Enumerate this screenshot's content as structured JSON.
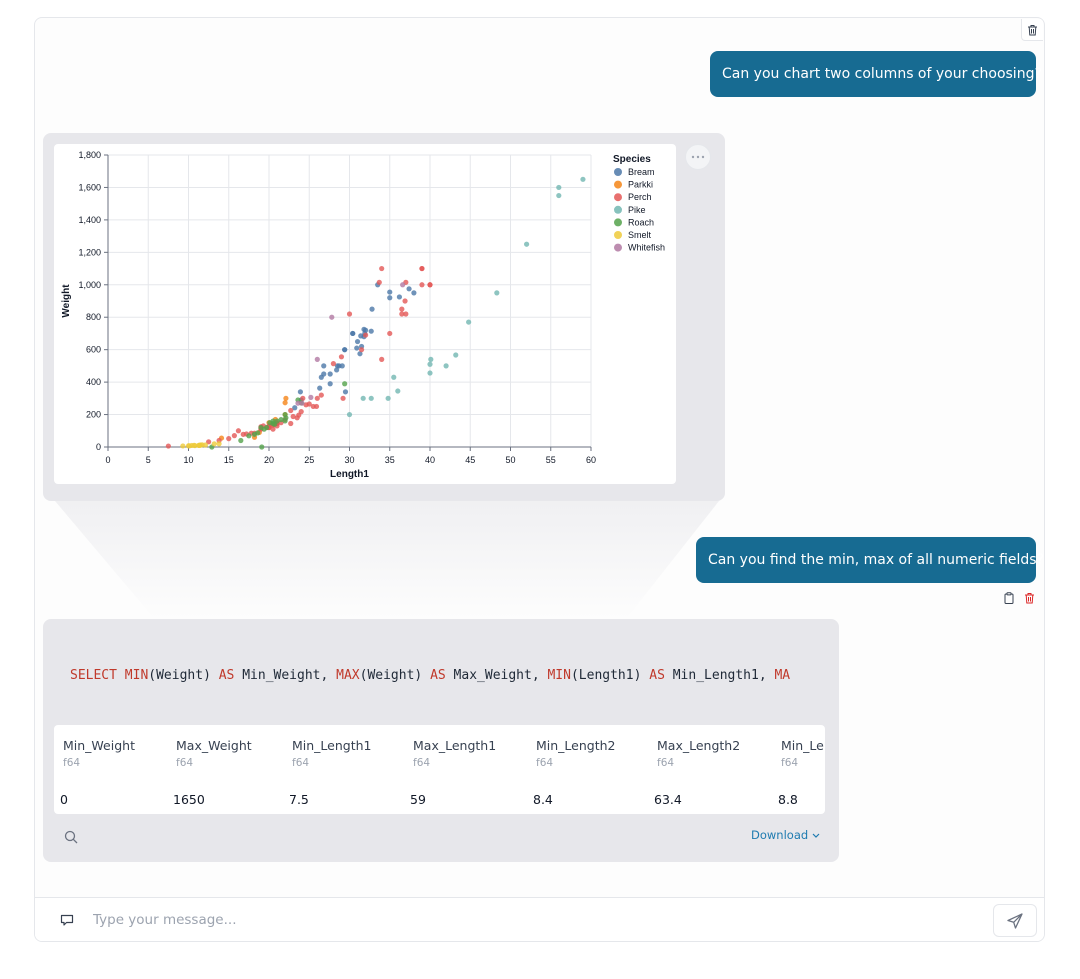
{
  "messages": {
    "user1": "Can you chart two columns of your choosing?",
    "user2": "Can you find the min, max of all numeric fields?"
  },
  "chart_data": {
    "type": "scatter",
    "xlabel": "Length1",
    "ylabel": "Weight",
    "xlim": [
      0,
      60
    ],
    "ylim": [
      0,
      1800
    ],
    "x_ticks": [
      "0",
      "5",
      "10",
      "15",
      "20",
      "25",
      "30",
      "35",
      "40",
      "45",
      "50",
      "55",
      "60"
    ],
    "y_ticks": [
      "0",
      "200",
      "400",
      "600",
      "800",
      "1,000",
      "1,200",
      "1,400",
      "1,600",
      "1,800"
    ],
    "grid": true,
    "legend": {
      "title": "Species",
      "placement": "top-right"
    },
    "colors": {
      "Bream": "#4c78a8",
      "Parkki": "#f58518",
      "Perch": "#e45756",
      "Pike": "#72b7b2",
      "Roach": "#54a24b",
      "Smelt": "#eeca3b",
      "Whitefish": "#b279a2"
    },
    "series": [
      {
        "name": "Bream",
        "points": [
          [
            23.2,
            242
          ],
          [
            24,
            290
          ],
          [
            23.9,
            340
          ],
          [
            26.3,
            363
          ],
          [
            26.5,
            430
          ],
          [
            26.8,
            450
          ],
          [
            26.8,
            500
          ],
          [
            27.6,
            390
          ],
          [
            27.6,
            450
          ],
          [
            28.5,
            500
          ],
          [
            28.4,
            475
          ],
          [
            28.7,
            500
          ],
          [
            29.1,
            500
          ],
          [
            29.5,
            340
          ],
          [
            29.4,
            600
          ],
          [
            29.4,
            600
          ],
          [
            30.4,
            700
          ],
          [
            30.4,
            700
          ],
          [
            30.9,
            610
          ],
          [
            31,
            650
          ],
          [
            31.3,
            575
          ],
          [
            31.4,
            685
          ],
          [
            31.5,
            620
          ],
          [
            31.8,
            680
          ],
          [
            31.9,
            700
          ],
          [
            31.8,
            725
          ],
          [
            32,
            720
          ],
          [
            32.7,
            714
          ],
          [
            32.8,
            850
          ],
          [
            33.5,
            1000
          ],
          [
            35,
            920
          ],
          [
            35,
            955
          ],
          [
            36.2,
            925
          ],
          [
            37.4,
            975
          ],
          [
            38,
            950
          ]
        ]
      },
      {
        "name": "Parkki",
        "points": [
          [
            14.1,
            55
          ],
          [
            18.2,
            60
          ],
          [
            18.8,
            90
          ],
          [
            19.8,
            120
          ],
          [
            20,
            150
          ],
          [
            20.5,
            140
          ],
          [
            20.8,
            170
          ],
          [
            21,
            145
          ],
          [
            22,
            200
          ],
          [
            22,
            273
          ],
          [
            22.1,
            300
          ]
        ]
      },
      {
        "name": "Perch",
        "points": [
          [
            7.5,
            5.9
          ],
          [
            12.5,
            32
          ],
          [
            13.8,
            40
          ],
          [
            15,
            51.5
          ],
          [
            15.7,
            70
          ],
          [
            16.2,
            100
          ],
          [
            16.8,
            78
          ],
          [
            17.2,
            80
          ],
          [
            17.8,
            85
          ],
          [
            18.2,
            85
          ],
          [
            19,
            110
          ],
          [
            19,
            115
          ],
          [
            19,
            125
          ],
          [
            19.3,
            130
          ],
          [
            20,
            120
          ],
          [
            20,
            120
          ],
          [
            20,
            130
          ],
          [
            20.5,
            135
          ],
          [
            20.5,
            110
          ],
          [
            21,
            130
          ],
          [
            21,
            150
          ],
          [
            21,
            145
          ],
          [
            21.5,
            150
          ],
          [
            22,
            170
          ],
          [
            22.7,
            225
          ],
          [
            22.7,
            145
          ],
          [
            23,
            188
          ],
          [
            23.5,
            180
          ],
          [
            23.7,
            197
          ],
          [
            24,
            218
          ],
          [
            24.2,
            300
          ],
          [
            24.6,
            260
          ],
          [
            25,
            265
          ],
          [
            25.5,
            250
          ],
          [
            25.9,
            250
          ],
          [
            26,
            300
          ],
          [
            26.5,
            320
          ],
          [
            28,
            514
          ],
          [
            29,
            556
          ],
          [
            29.2,
            300
          ],
          [
            30,
            820
          ],
          [
            31.5,
            600
          ],
          [
            32,
            690
          ],
          [
            33.7,
            1015
          ],
          [
            34,
            1100
          ],
          [
            34,
            540
          ],
          [
            35,
            700
          ],
          [
            36.5,
            820
          ],
          [
            36.5,
            850
          ],
          [
            36.9,
            900
          ],
          [
            37,
            1015
          ],
          [
            37,
            820
          ],
          [
            39,
            1100
          ],
          [
            39,
            1000
          ],
          [
            39,
            1100
          ],
          [
            40,
            1000
          ],
          [
            40,
            1000
          ]
        ]
      },
      {
        "name": "Pike",
        "points": [
          [
            30,
            200
          ],
          [
            31.7,
            300
          ],
          [
            32.7,
            300
          ],
          [
            34.8,
            300
          ],
          [
            35.5,
            430
          ],
          [
            36,
            345
          ],
          [
            40,
            456
          ],
          [
            40,
            510
          ],
          [
            40.1,
            540
          ],
          [
            42,
            500
          ],
          [
            43.2,
            567
          ],
          [
            44.8,
            770
          ],
          [
            48.3,
            950
          ],
          [
            52,
            1250
          ],
          [
            56,
            1600
          ],
          [
            56,
            1550
          ],
          [
            59,
            1650
          ]
        ]
      },
      {
        "name": "Roach",
        "points": [
          [
            12.9,
            0
          ],
          [
            16.5,
            40
          ],
          [
            17.5,
            69
          ],
          [
            18.2,
            78
          ],
          [
            18.6,
            87
          ],
          [
            19,
            120
          ],
          [
            19.1,
            0
          ],
          [
            19.4,
            110
          ],
          [
            19.7,
            120
          ],
          [
            20.1,
            150
          ],
          [
            20.5,
            145
          ],
          [
            20.5,
            160
          ],
          [
            20.7,
            140
          ],
          [
            21,
            160
          ],
          [
            21.5,
            169
          ],
          [
            22,
            161
          ],
          [
            22,
            200
          ],
          [
            22.1,
            180
          ],
          [
            23.6,
            290
          ],
          [
            24,
            272
          ],
          [
            29.4,
            390
          ]
        ]
      },
      {
        "name": "Smelt",
        "points": [
          [
            9.3,
            6.7
          ],
          [
            10,
            7.5
          ],
          [
            10.1,
            7
          ],
          [
            10.4,
            9.7
          ],
          [
            10.7,
            9.8
          ],
          [
            10.8,
            8.7
          ],
          [
            11.3,
            10
          ],
          [
            11.3,
            9.9
          ],
          [
            11.4,
            9.8
          ],
          [
            11.5,
            12.2
          ],
          [
            11.7,
            13.4
          ],
          [
            12.1,
            12.2
          ],
          [
            13.2,
            19.7
          ],
          [
            13.8,
            19.9
          ]
        ]
      },
      {
        "name": "Whitefish",
        "points": [
          [
            23.6,
            270
          ],
          [
            24.1,
            270
          ],
          [
            25.2,
            306
          ],
          [
            26,
            540
          ],
          [
            27.8,
            800
          ],
          [
            36.6,
            1000
          ]
        ]
      }
    ]
  },
  "sql": {
    "parts": [
      {
        "t": "SELECT",
        "kw": true
      },
      {
        "t": " ",
        "kw": false
      },
      {
        "t": "MIN",
        "kw": true
      },
      {
        "t": "(Weight) ",
        "kw": false
      },
      {
        "t": "AS",
        "kw": true
      },
      {
        "t": " Min_Weight, ",
        "kw": false
      },
      {
        "t": "MAX",
        "kw": true
      },
      {
        "t": "(Weight) ",
        "kw": false
      },
      {
        "t": "AS",
        "kw": true
      },
      {
        "t": " Max_Weight, ",
        "kw": false
      },
      {
        "t": "MIN",
        "kw": true
      },
      {
        "t": "(Length1) ",
        "kw": false
      },
      {
        "t": "AS",
        "kw": true
      },
      {
        "t": " Min_Length1, ",
        "kw": false
      },
      {
        "t": "MA",
        "kw": true
      }
    ]
  },
  "table": {
    "columns": [
      {
        "name": "Min_Weight",
        "type": "f64",
        "value": "0"
      },
      {
        "name": "Max_Weight",
        "type": "f64",
        "value": "1650"
      },
      {
        "name": "Min_Length1",
        "type": "f64",
        "value": "7.5"
      },
      {
        "name": "Max_Length1",
        "type": "f64",
        "value": "59"
      },
      {
        "name": "Min_Length2",
        "type": "f64",
        "value": "8.4"
      },
      {
        "name": "Max_Length2",
        "type": "f64",
        "value": "63.4"
      },
      {
        "name": "Min_Le",
        "type": "f64",
        "value": "8.8"
      }
    ],
    "download_label": "Download"
  },
  "input": {
    "placeholder": "Type your message..."
  },
  "icons": {
    "trash": "trash-icon",
    "copy": "clipboard-icon",
    "more": "more-icon",
    "search": "search-icon",
    "chevron": "chevron-down-icon",
    "message": "message-icon",
    "send": "send-icon"
  },
  "theme": {
    "accent": "#176b92",
    "danger": "#dc2626",
    "link": "#1e7bb0"
  }
}
